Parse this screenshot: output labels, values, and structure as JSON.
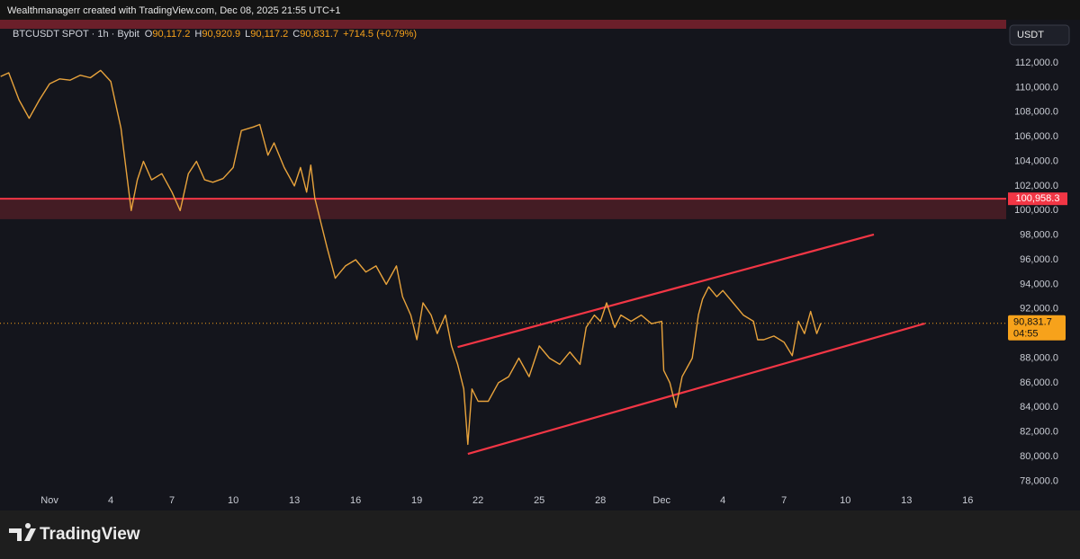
{
  "chart_data": {
    "type": "line",
    "title": "Wealthmanagerr created with TradingView.com, Dec 08, 2025 21:55 UTC+1",
    "symbol": "BTCUSDT SPOT · 1h · Bybit",
    "ohlc": [
      [
        "O",
        "90,117.2"
      ],
      [
        "H",
        "90,920.9"
      ],
      [
        "L",
        "90,117.2"
      ],
      [
        "C",
        "90,831.7"
      ]
    ],
    "change": "+714.5 (+0.79%)",
    "currency": "USDT",
    "brand": "TradingView",
    "color": "#e8a33c",
    "grid": false,
    "xlim": [
      -1.43,
      47.62
    ],
    "xticks": [
      {
        "value": 1,
        "label": "Nov"
      },
      4,
      7,
      10,
      13,
      16,
      19,
      22,
      25,
      28,
      {
        "value": 31,
        "label": "Dec"
      },
      {
        "value": 34,
        "label": "4"
      },
      {
        "value": 37,
        "label": "7"
      },
      {
        "value": 40,
        "label": "10"
      },
      {
        "value": 43,
        "label": "13"
      },
      {
        "value": 46,
        "label": "16"
      }
    ],
    "ylim": [
      77300,
      114780
    ],
    "yticks": [
      {
        "value": 78000,
        "label": "78,000.0"
      },
      {
        "value": 80000,
        "label": "80,000.0"
      },
      {
        "value": 82000,
        "label": "82,000.0"
      },
      {
        "value": 84000,
        "label": "84,000.0"
      },
      {
        "value": 86000,
        "label": "86,000.0"
      },
      {
        "value": 88000,
        "label": "88,000.0"
      },
      {
        "value": 90000,
        "label": "90,000.0"
      },
      {
        "value": 92000,
        "label": "92,000.0"
      },
      {
        "value": 94000,
        "label": "94,000.0"
      },
      {
        "value": 96000,
        "label": "96,000.0"
      },
      {
        "value": 98000,
        "label": "98,000.0"
      },
      {
        "value": 100000,
        "label": "100,000.0"
      },
      {
        "value": 102000,
        "label": "102,000.0"
      },
      {
        "value": 104000,
        "label": "104,000.0"
      },
      {
        "value": 106000,
        "label": "106,000.0"
      },
      {
        "value": 108000,
        "label": "108,000.0"
      },
      {
        "value": 110000,
        "label": "110,000.0"
      },
      {
        "value": 112000,
        "label": "112,000.0"
      }
    ],
    "x": [
      -1.4,
      -1.0,
      -0.5,
      0,
      0.5,
      1.0,
      1.5,
      2.0,
      2.5,
      3.0,
      3.5,
      4.0,
      4.5,
      5.0,
      5.3,
      5.6,
      6.0,
      6.5,
      7.0,
      7.4,
      7.8,
      8.2,
      8.6,
      9.0,
      9.5,
      10.0,
      10.4,
      11.0,
      11.3,
      11.7,
      12.0,
      12.5,
      13.0,
      13.3,
      13.6,
      13.8,
      14.0,
      14.3,
      14.6,
      15.0,
      15.5,
      16.0,
      16.5,
      17.0,
      17.5,
      18.0,
      18.3,
      18.7,
      19.0,
      19.3,
      19.7,
      20.0,
      20.4,
      20.7,
      21.0,
      21.3,
      21.5,
      21.7,
      22.0,
      22.5,
      23.0,
      23.5,
      24.0,
      24.5,
      25.0,
      25.5,
      26.0,
      26.5,
      27.0,
      27.3,
      27.7,
      28.0,
      28.3,
      28.7,
      29.0,
      29.5,
      30.0,
      30.5,
      31.0,
      31.1,
      31.4,
      31.7,
      32.0,
      32.5,
      32.8,
      33.0,
      33.3,
      33.7,
      34.0,
      34.5,
      35.0,
      35.5,
      35.7,
      36.0,
      36.5,
      37.0,
      37.4,
      37.7,
      38.0,
      38.3,
      38.6,
      38.8
    ],
    "values": [
      110900,
      111200,
      109000,
      107500,
      109000,
      110300,
      110700,
      110600,
      111000,
      110800,
      111400,
      110500,
      106700,
      100000,
      102500,
      104000,
      102500,
      103000,
      101500,
      100000,
      103000,
      104000,
      102500,
      102300,
      102600,
      103500,
      106500,
      106800,
      107000,
      104500,
      105500,
      103500,
      102000,
      103500,
      101500,
      103700,
      101000,
      99000,
      97000,
      94500,
      95500,
      96000,
      95000,
      95500,
      94000,
      95500,
      93000,
      91500,
      89500,
      92500,
      91500,
      90000,
      91500,
      89000,
      87500,
      85500,
      81000,
      85500,
      84500,
      84500,
      86000,
      86500,
      88000,
      86500,
      89000,
      88000,
      87500,
      88500,
      87500,
      90500,
      91500,
      91000,
      92500,
      90500,
      91500,
      91000,
      91500,
      90800,
      91000,
      87000,
      86000,
      84000,
      86500,
      88000,
      91500,
      92800,
      93800,
      93000,
      93500,
      92500,
      91500,
      91000,
      89500,
      89500,
      89800,
      89300,
      88200,
      91000,
      90000,
      91800,
      90000,
      90831.7
    ],
    "resistance": {
      "value": 100958.3,
      "label": "100,958.3",
      "zone": [
        99300,
        100958.3
      ],
      "color": "#f23645"
    },
    "last_price": {
      "value": 90831.7,
      "label": "90,831.7",
      "countdown": "04:55",
      "color": "#f7a21b"
    },
    "channel": [
      {
        "x": [
          21.0,
          41.4
        ],
        "y": [
          88900,
          98050
        ]
      },
      {
        "x": [
          21.5,
          43.9
        ],
        "y": [
          80220,
          90820
        ]
      }
    ]
  }
}
